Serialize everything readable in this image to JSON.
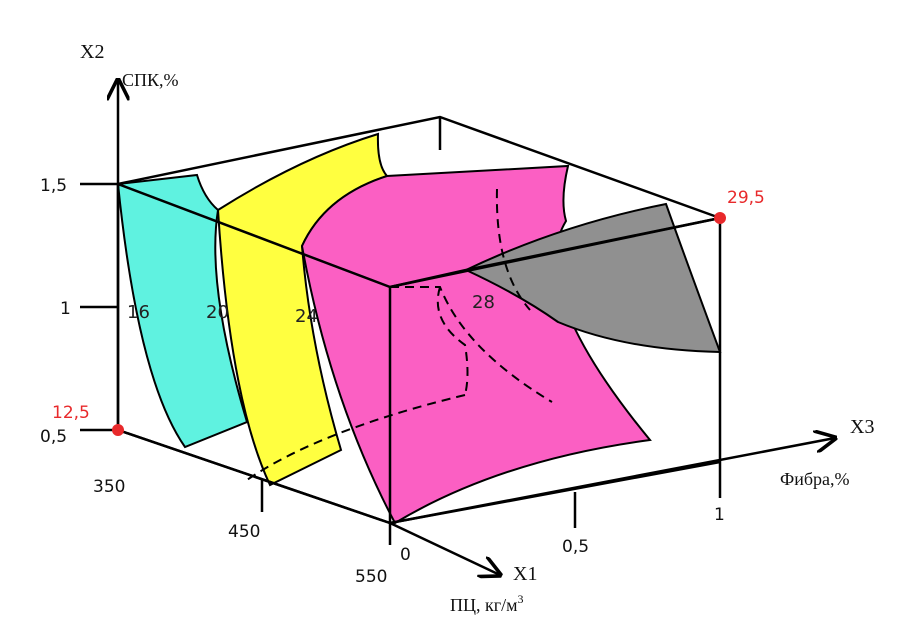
{
  "axes": {
    "x1": {
      "name": "X1",
      "caption": "ПЦ, кг/м",
      "caption_sup": "3",
      "ticks": [
        "350",
        "450",
        "550"
      ]
    },
    "x2": {
      "name": "X2",
      "caption": "СПК,%",
      "ticks": [
        "0,5",
        "1",
        "1,5"
      ]
    },
    "x3": {
      "name": "X3",
      "caption": "Фибра,%",
      "ticks": [
        "0",
        "0,5",
        "1"
      ]
    }
  },
  "isolines": [
    "16",
    "20",
    "24",
    "28"
  ],
  "extremes": {
    "min": "12,5",
    "max": "29,5"
  },
  "colors": {
    "region_16": "#5ff2e0",
    "region_20": "#ffff40",
    "region_24": "#fb5fc3",
    "region_28": "#909090",
    "axis": "#000000",
    "extreme_marker": "#e8292b"
  }
}
